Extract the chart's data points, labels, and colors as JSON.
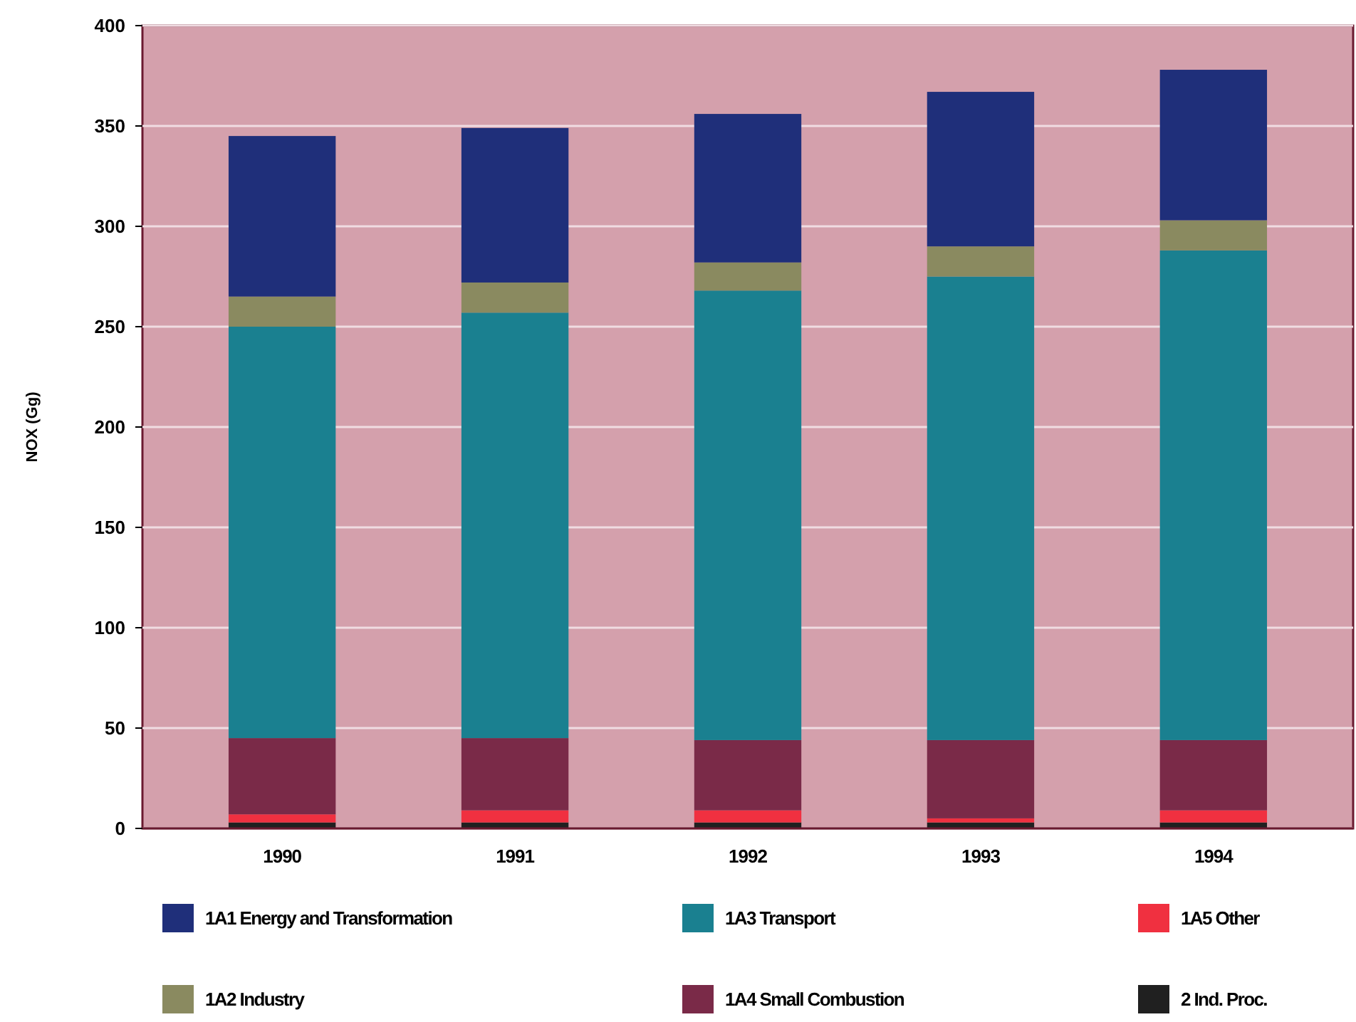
{
  "chart_data": {
    "type": "bar",
    "stacked": true,
    "ylabel": "NOX (Gg)",
    "categories": [
      "1990",
      "1991",
      "1992",
      "1993",
      "1994"
    ],
    "series": [
      {
        "name": "2 Ind. Proc.",
        "color": "#202020",
        "values": [
          3,
          3,
          3,
          3,
          3
        ]
      },
      {
        "name": "1A5 Other",
        "color": "#f03040",
        "values": [
          4,
          6,
          6,
          2,
          6
        ]
      },
      {
        "name": "1A4 Small Combustion",
        "color": "#7a2a48",
        "values": [
          38,
          36,
          35,
          39,
          35
        ]
      },
      {
        "name": "1A3 Transport",
        "color": "#1a8090",
        "values": [
          205,
          212,
          224,
          231,
          244
        ]
      },
      {
        "name": "1A2 Industry",
        "color": "#8a8a60",
        "values": [
          15,
          15,
          14,
          15,
          15
        ]
      },
      {
        "name": "1A1 Energy and Transformation",
        "color": "#1f2f7a",
        "values": [
          80,
          77,
          74,
          77,
          75
        ]
      }
    ],
    "ylim": [
      0,
      400
    ],
    "yticks": [
      0,
      50,
      100,
      150,
      200,
      250,
      300,
      350,
      400
    ],
    "grid": "y",
    "legend": "bottom"
  }
}
